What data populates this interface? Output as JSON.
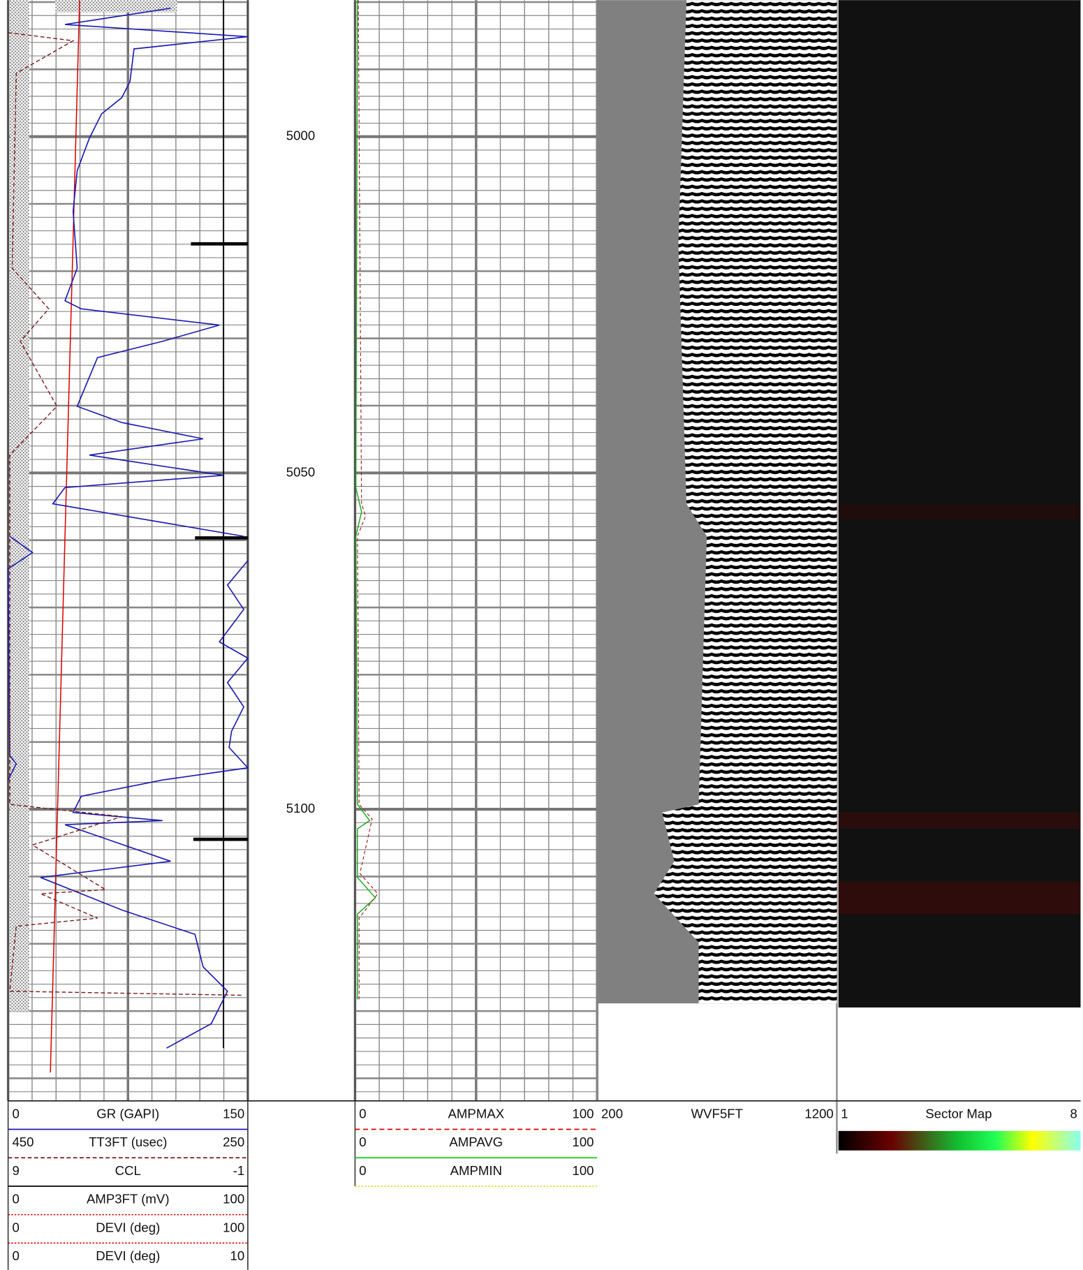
{
  "depth_labels": [
    "5000",
    "5050",
    "5100"
  ],
  "headers": {
    "track1": [
      {
        "left": "0",
        "name": "GR (GAPI)",
        "right": "150"
      },
      {
        "left": "450",
        "name": "TT3FT (usec)",
        "right": "250"
      },
      {
        "left": "9",
        "name": "CCL",
        "right": "-1"
      },
      {
        "left": "0",
        "name": "AMP3FT (mV)",
        "right": "100"
      },
      {
        "left": "0",
        "name": "DEVI (deg)",
        "right": "100"
      },
      {
        "left": "0",
        "name": "DEVI (deg)",
        "right": "10"
      }
    ],
    "track2": [
      {
        "left": "0",
        "name": "AMPMAX",
        "right": "100"
      },
      {
        "left": "0",
        "name": "AMPAVG",
        "right": "100"
      },
      {
        "left": "0",
        "name": "AMPMIN",
        "right": "100"
      }
    ],
    "track3": [
      {
        "left": "200",
        "name": "WVF5FT",
        "right": "1200"
      }
    ],
    "track4": [
      {
        "left": "1",
        "name": "Sector Map",
        "right": "8"
      }
    ]
  }
}
